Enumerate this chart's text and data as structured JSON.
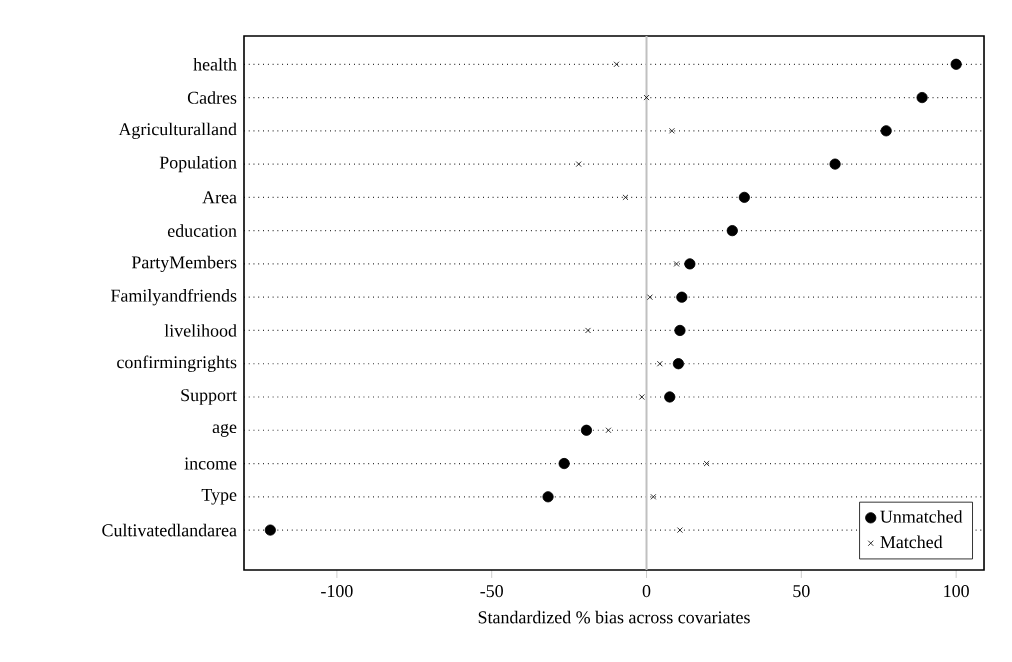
{
  "chart_data": {
    "type": "scatter",
    "xlabel": "Standardized % bias across covariates",
    "categories": [
      "health",
      "Cadres",
      "Agriculturalland",
      "Population",
      "Area",
      "education",
      "PartyMembers",
      "Familyandfriends",
      "livelihood",
      "confirmingrights",
      "Support",
      "age",
      "income",
      "Type",
      "Cultivatedlandarea"
    ],
    "series": [
      {
        "name": "Unmatched",
        "color": "#000000",
        "marker": "circle",
        "values": [
          100,
          89,
          77.4,
          60.9,
          31.6,
          27.7,
          14,
          11.4,
          10.8,
          10.3,
          7.5,
          -19.4,
          -26.6,
          -31.8,
          -121.5
        ]
      },
      {
        "name": "Matched",
        "color": "#000000",
        "marker": "cross",
        "values": [
          -9.7,
          0,
          8.2,
          -21.9,
          -6.8,
          null,
          9.7,
          1.1,
          -18.9,
          4.3,
          -1.5,
          -12.3,
          19.4,
          2.2,
          10.8
        ]
      }
    ],
    "orientation": "horizontal",
    "xlim": [
      -130,
      109
    ],
    "xticks": [
      -100,
      -50,
      0,
      50,
      100
    ],
    "ref_lines": [
      {
        "axis": "x",
        "value": 0,
        "color": "#c0c0c0"
      }
    ],
    "grid": "y",
    "legend": "bottom right"
  }
}
